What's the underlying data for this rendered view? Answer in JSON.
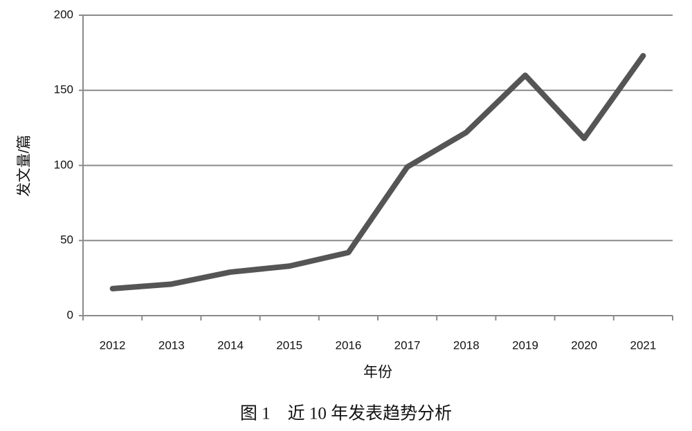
{
  "chart_data": {
    "type": "line",
    "caption": "图 1　近 10 年发表趋势分析",
    "x_label": "年份",
    "y_label": "发文量/篇",
    "categories": [
      "2012",
      "2013",
      "2014",
      "2015",
      "2016",
      "2017",
      "2018",
      "2019",
      "2020",
      "2021"
    ],
    "values": [
      18,
      21,
      29,
      33,
      42,
      99,
      122,
      160,
      118,
      173
    ],
    "color": "#555555",
    "ylim": [
      0,
      200
    ],
    "yticks": [
      0,
      50,
      100,
      150,
      200
    ],
    "grid": true
  }
}
